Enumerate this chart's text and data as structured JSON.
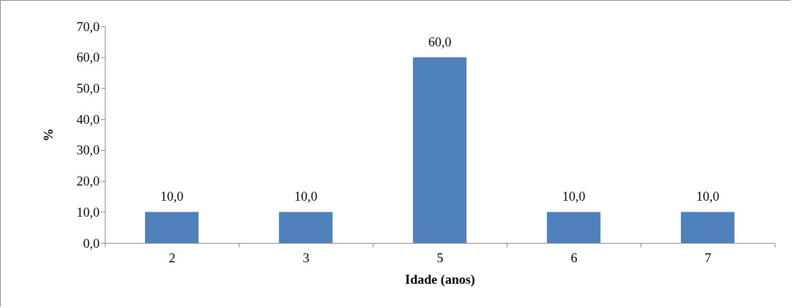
{
  "chart_data": {
    "type": "bar",
    "xlabel": "Idade (anos)",
    "ylabel": "%",
    "categories": [
      "2",
      "3",
      "5",
      "6",
      "7"
    ],
    "values": [
      10,
      10,
      60,
      10,
      10
    ],
    "value_labels": [
      "10,0",
      "10,0",
      "60,0",
      "10,0",
      "10,0"
    ],
    "color": "#4f81bd",
    "ylim": [
      0,
      70
    ],
    "yticks": [
      {
        "value": 0,
        "label": "0,0"
      },
      {
        "value": 10,
        "label": "10,0"
      },
      {
        "value": 20,
        "label": "20,0"
      },
      {
        "value": 30,
        "label": "30,0"
      },
      {
        "value": 40,
        "label": "40,0"
      },
      {
        "value": 50,
        "label": "50,0"
      },
      {
        "value": 60,
        "label": "60,0"
      },
      {
        "value": 70,
        "label": "70,0"
      }
    ],
    "grid": false
  }
}
